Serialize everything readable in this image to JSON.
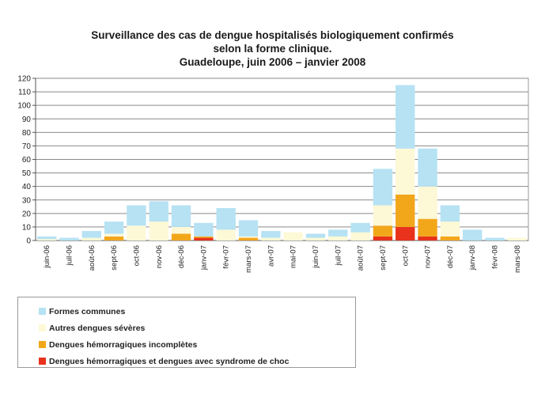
{
  "chart_data": {
    "type": "bar",
    "stacked": true,
    "title": [
      "Surveillance des cas de dengue hospitalisés biologiquement confirmés",
      "selon la forme clinique.",
      "Guadeloupe, juin 2006 – janvier 2008"
    ],
    "xlabel": "",
    "ylabel": "",
    "ylim": [
      0,
      120
    ],
    "yticks": [
      0,
      10,
      20,
      30,
      40,
      50,
      60,
      70,
      80,
      90,
      100,
      110,
      120
    ],
    "grid": true,
    "legend_position": "bottom-left",
    "categories": [
      "juin-06",
      "juil-06",
      "août-06",
      "sept-06",
      "oct-06",
      "nov-06",
      "déc-06",
      "janv-07",
      "févr-07",
      "mars-07",
      "avr-07",
      "mai-07",
      "juin-07",
      "juil-07",
      "août-07",
      "sept-07",
      "oct-07",
      "nov-07",
      "déc-07",
      "janv-08",
      "févr-08",
      "mars-08"
    ],
    "series": [
      {
        "name": "Dengues hémorragiques et dengues avec syndrome de choc",
        "color": "#e8321c",
        "values": [
          0,
          0,
          0,
          0,
          0,
          0,
          0,
          2,
          0,
          0,
          0,
          0,
          0,
          0,
          0,
          3,
          10,
          3,
          0,
          0,
          0,
          0
        ]
      },
      {
        "name": "Dengues hémorragiques incomplètes",
        "color": "#f2a71b",
        "values": [
          0,
          0,
          0,
          3,
          0,
          0,
          5,
          1,
          0,
          2,
          0,
          0,
          0,
          0,
          0,
          8,
          24,
          13,
          3,
          0,
          0,
          0
        ]
      },
      {
        "name": "Autres dengues sévères",
        "color": "#fdf8d6",
        "values": [
          1,
          0,
          2,
          2,
          11,
          14,
          5,
          0,
          8,
          1,
          2,
          6,
          2,
          3,
          6,
          15,
          34,
          24,
          11,
          0,
          0,
          2
        ]
      },
      {
        "name": "Formes communes",
        "color": "#b6e2f3",
        "values": [
          2,
          2,
          5,
          9,
          15,
          15,
          16,
          10,
          16,
          12,
          5,
          0,
          3,
          5,
          7,
          27,
          47,
          28,
          12,
          8,
          2,
          0
        ]
      }
    ],
    "legend_order": [
      "Formes communes",
      "Autres dengues sévères",
      "Dengues hémorragiques incomplètes",
      "Dengues hémorragiques et dengues avec syndrome de choc"
    ],
    "legend_colors": [
      "#b6e2f3",
      "#fdf8d6",
      "#f2a71b",
      "#e8321c"
    ]
  }
}
